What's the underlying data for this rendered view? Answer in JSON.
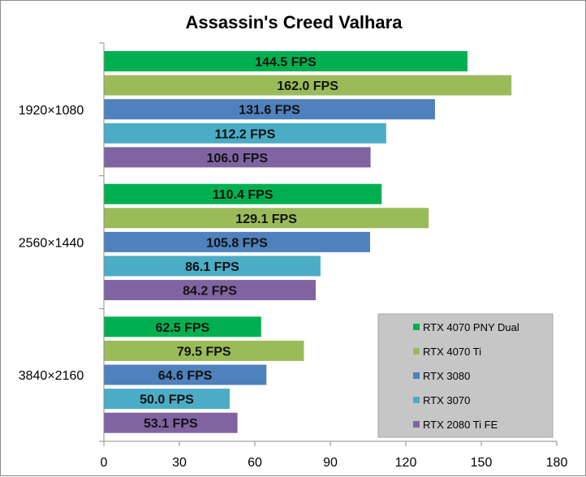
{
  "chart_data": {
    "type": "bar",
    "orientation": "horizontal",
    "title": "Assassin's Creed Valhara",
    "categories": [
      "1920×1080",
      "2560×1440",
      "3840×2160"
    ],
    "series": [
      {
        "name": "RTX 4070 PNY Dual",
        "color": "#00b050",
        "values": [
          144.5,
          110.4,
          62.5
        ],
        "labels": [
          "144.5 FPS",
          "110.4 FPS",
          "62.5 FPS"
        ]
      },
      {
        "name": "RTX 4070 Ti",
        "color": "#9bbb59",
        "values": [
          162.0,
          129.1,
          79.5
        ],
        "labels": [
          "162.0 FPS",
          "129.1 FPS",
          "79.5 FPS"
        ]
      },
      {
        "name": "RTX 3080",
        "color": "#4f81bd",
        "values": [
          131.6,
          105.8,
          64.6
        ],
        "labels": [
          "131.6 FPS",
          "105.8 FPS",
          "64.6 FPS"
        ]
      },
      {
        "name": "RTX 3070",
        "color": "#4bacc6",
        "values": [
          112.2,
          86.1,
          50.0
        ],
        "labels": [
          "112.2 FPS",
          "86.1 FPS",
          "50.0 FPS"
        ]
      },
      {
        "name": "RTX 2080 Ti FE",
        "color": "#8064a2",
        "values": [
          106.0,
          84.2,
          53.1
        ],
        "labels": [
          "106.0 FPS",
          "84.2 FPS",
          "53.1 FPS"
        ]
      }
    ],
    "xlim": [
      0,
      180
    ],
    "xticks": [
      "0",
      "30",
      "60",
      "90",
      "120",
      "150",
      "180"
    ],
    "grid": false,
    "legend_position": "bottom-right"
  }
}
